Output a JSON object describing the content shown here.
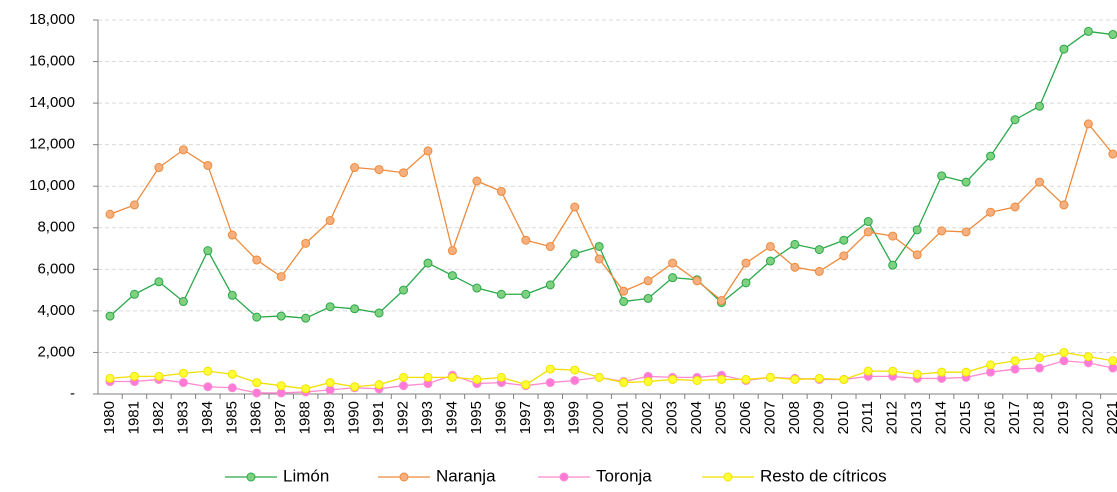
{
  "chart_data": {
    "type": "line",
    "categories": [
      "1980",
      "1981",
      "1982",
      "1983",
      "1984",
      "1985",
      "1986",
      "1987",
      "1988",
      "1989",
      "1990",
      "1991",
      "1992",
      "1993",
      "1994",
      "1995",
      "1996",
      "1997",
      "1998",
      "1999",
      "2000",
      "2001",
      "2002",
      "2003",
      "2004",
      "2005",
      "2006",
      "2007",
      "2008",
      "2009",
      "2010",
      "2011",
      "2012",
      "2013",
      "2014",
      "2015",
      "2016",
      "2017",
      "2018",
      "2019",
      "2020",
      "2021"
    ],
    "series": [
      {
        "name": "Limón",
        "color": "#2aa84a",
        "marker": "#7ed17e",
        "values": [
          3750,
          4800,
          5400,
          4450,
          6900,
          4750,
          3700,
          3750,
          3650,
          4200,
          4100,
          3900,
          5000,
          6300,
          5700,
          5100,
          4800,
          4800,
          5250,
          6750,
          7100,
          4450,
          4600,
          5600,
          5500,
          4400,
          5350,
          6400,
          7200,
          6950,
          7400,
          8300,
          6200,
          7900,
          10500,
          10200,
          11450,
          13200,
          13850,
          16600,
          17450,
          17300
        ]
      },
      {
        "name": "Naranja",
        "color": "#ee8a3c",
        "marker": "#f6b080",
        "values": [
          8650,
          9100,
          10900,
          11750,
          11000,
          7650,
          6450,
          5650,
          7250,
          8350,
          10900,
          10800,
          10650,
          11700,
          6900,
          10250,
          9750,
          7400,
          7100,
          9000,
          6500,
          4950,
          5450,
          6300,
          5450,
          4500,
          6300,
          7100,
          6100,
          5900,
          6650,
          7800,
          7600,
          6700,
          7850,
          7800,
          8750,
          9000,
          10200,
          9100,
          13000,
          11550
        ]
      },
      {
        "name": "Toronja",
        "color": "#ff8ad0",
        "marker": "#ff7ad8",
        "values": [
          600,
          600,
          700,
          550,
          350,
          300,
          50,
          50,
          100,
          200,
          300,
          250,
          400,
          500,
          900,
          500,
          550,
          400,
          550,
          650,
          800,
          600,
          850,
          800,
          800,
          900,
          650,
          800,
          750,
          700,
          700,
          850,
          850,
          750,
          750,
          800,
          1050,
          1200,
          1250,
          1600,
          1500,
          1250
        ]
      },
      {
        "name": "Resto de cítricos",
        "color": "#f2e000",
        "marker": "#ffff33",
        "values": [
          750,
          850,
          850,
          1000,
          1100,
          950,
          550,
          400,
          250,
          550,
          350,
          450,
          800,
          800,
          800,
          700,
          800,
          450,
          1200,
          1150,
          800,
          550,
          600,
          700,
          650,
          700,
          700,
          800,
          700,
          750,
          700,
          1100,
          1100,
          950,
          1050,
          1050,
          1400,
          1600,
          1750,
          2000,
          1800,
          1600
        ]
      }
    ],
    "ylim": [
      0,
      18000
    ],
    "yticks": [
      {
        "value": 0,
        "label": "-"
      },
      {
        "value": 2000,
        "label": "2,000"
      },
      {
        "value": 4000,
        "label": "4,000"
      },
      {
        "value": 6000,
        "label": "6,000"
      },
      {
        "value": 8000,
        "label": "8,000"
      },
      {
        "value": 10000,
        "label": "10,000"
      },
      {
        "value": 12000,
        "label": "12,000"
      },
      {
        "value": 14000,
        "label": "14,000"
      },
      {
        "value": 16000,
        "label": "16,000"
      },
      {
        "value": 18000,
        "label": "18,000"
      }
    ],
    "grid": true,
    "legend": "bottom"
  }
}
